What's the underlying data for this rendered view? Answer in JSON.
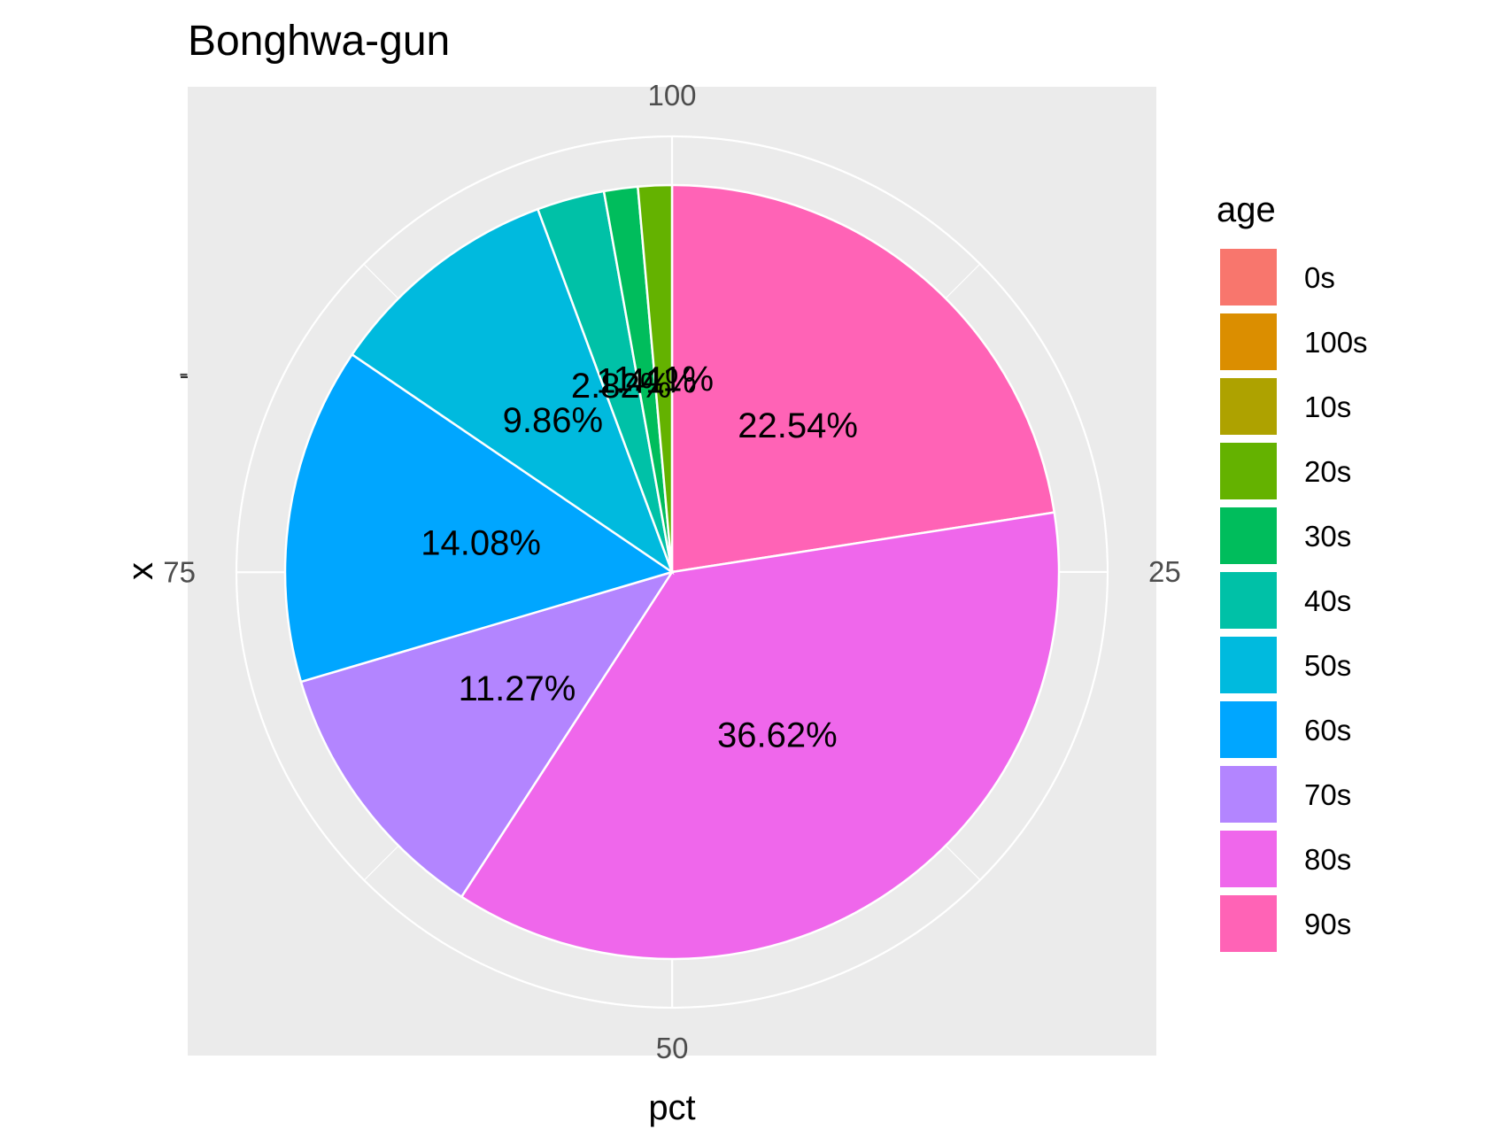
{
  "chart_data": {
    "type": "pie",
    "title": "Bonghwa-gun",
    "xlabel": "pct",
    "ylabel": "x",
    "y_tick": "-",
    "theta_ticks": [
      {
        "value": 100,
        "label": "100"
      },
      {
        "value": 25,
        "label": "25"
      },
      {
        "value": 50,
        "label": "50"
      },
      {
        "value": 75,
        "label": "75"
      }
    ],
    "legend": {
      "title": "age",
      "position": "right"
    },
    "slices": [
      {
        "category": "0s",
        "value": 0,
        "label": "",
        "color": "#F8766D"
      },
      {
        "category": "100s",
        "value": 0,
        "label": "",
        "color": "#DB8E00"
      },
      {
        "category": "10s",
        "value": 0,
        "label": "",
        "color": "#AEA200"
      },
      {
        "category": "20s",
        "value": 1.41,
        "label": "1.41%",
        "color": "#64B200"
      },
      {
        "category": "30s",
        "value": 1.41,
        "label": "1.41%",
        "color": "#00BD5C"
      },
      {
        "category": "40s",
        "value": 2.82,
        "label": "2.82%",
        "color": "#00C1A7"
      },
      {
        "category": "50s",
        "value": 9.86,
        "label": "9.86%",
        "color": "#00BADE"
      },
      {
        "category": "60s",
        "value": 14.08,
        "label": "14.08%",
        "color": "#00A6FF"
      },
      {
        "category": "70s",
        "value": 11.27,
        "label": "11.27%",
        "color": "#B385FF"
      },
      {
        "category": "80s",
        "value": 36.62,
        "label": "36.62%",
        "color": "#EF67EB"
      },
      {
        "category": "90s",
        "value": 22.54,
        "label": "22.54%",
        "color": "#FF63B6"
      }
    ],
    "panel_color": "#EBEBEB",
    "grid_color": "#FFFFFF"
  }
}
